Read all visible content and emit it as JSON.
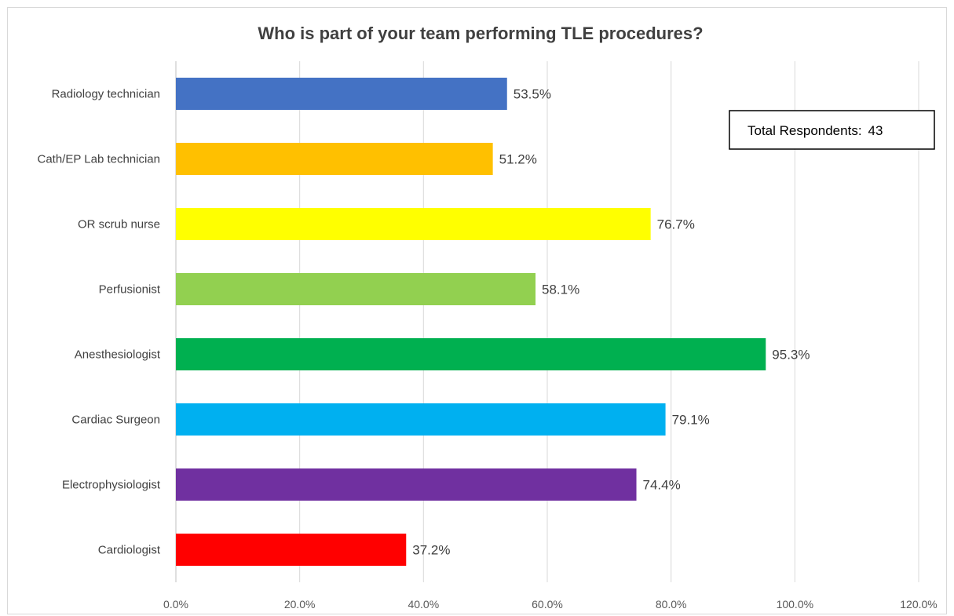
{
  "chart_data": {
    "type": "bar",
    "orientation": "horizontal",
    "title": "Who is part of your team performing TLE procedures?",
    "xlabel": "",
    "ylabel": "",
    "categories": [
      "Radiology technician",
      "Cath/EP Lab technician",
      "OR scrub nurse",
      "Perfusionist",
      "Anesthesiologist",
      "Cardiac Surgeon",
      "Electrophysiologist",
      "Cardiologist"
    ],
    "values": [
      53.5,
      51.2,
      76.7,
      58.1,
      95.3,
      79.1,
      74.4,
      37.2
    ],
    "data_labels": [
      "53.5%",
      "51.2%",
      "76.7%",
      "58.1%",
      "95.3%",
      "79.1%",
      "74.4%",
      "37.2%"
    ],
    "colors": [
      "#4472c4",
      "#ffc000",
      "#ffff00",
      "#92d050",
      "#00b050",
      "#00b0f0",
      "#7030a0",
      "#ff0000"
    ],
    "xlim": [
      0,
      120
    ],
    "x_ticks": [
      0,
      20,
      40,
      60,
      80,
      100,
      120
    ],
    "x_tick_labels": [
      "0.0%",
      "20.0%",
      "40.0%",
      "60.0%",
      "80.0%",
      "100.0%",
      "120.0%"
    ],
    "grid": "vertical",
    "legend": "none",
    "annotation": {
      "label": "Total Respondents:",
      "value": "43",
      "placement": "top-right"
    }
  }
}
